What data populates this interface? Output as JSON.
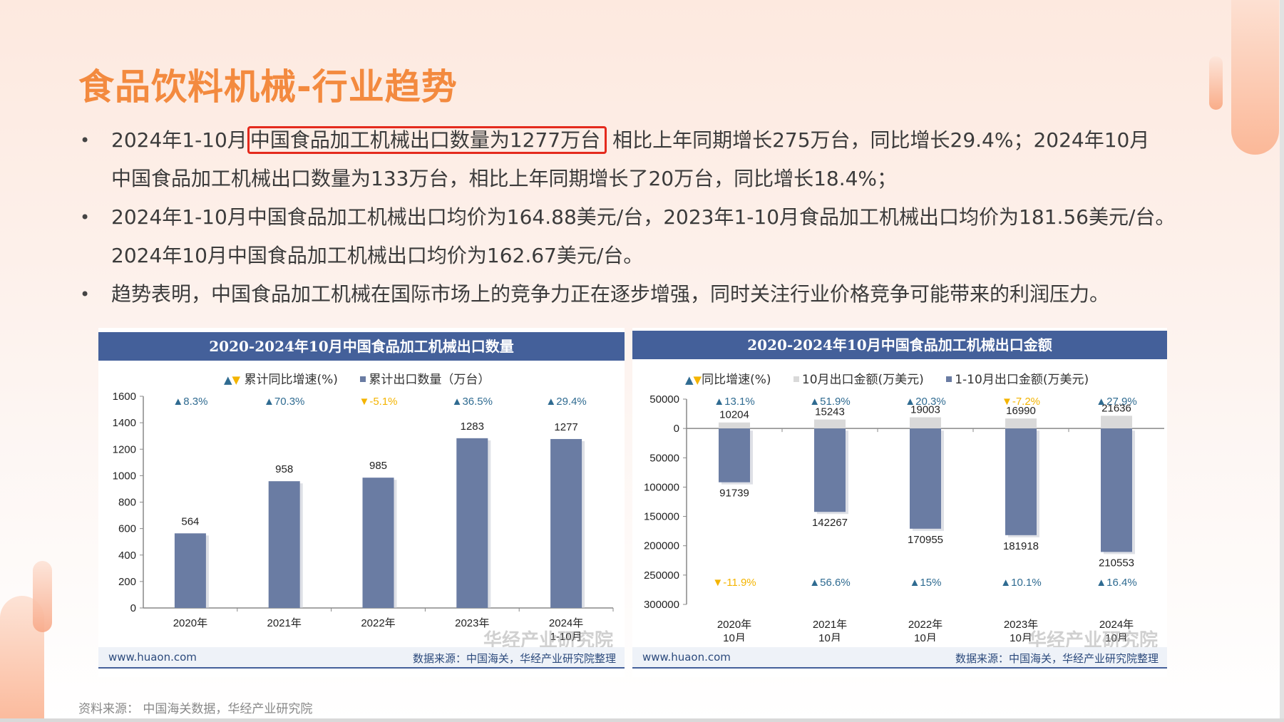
{
  "page": {
    "title": "食品饮料机械-行业趋势",
    "source_note": "资料来源：  中国海关数据，华经产业研究院"
  },
  "bullets": [
    {
      "lines": [
        {
          "pre": "2024年1-10月",
          "highlight": "中国食品加工机械出口数量为1277万台",
          "post": "相比上年同期增长275万台，同比增长29.4%；2024年10月"
        },
        {
          "text": "中国食品加工机械出口数量为133万台，相比上年同期增长了20万台，同比增长18.4%；"
        }
      ]
    },
    {
      "lines": [
        {
          "text": "2024年1-10月中国食品加工机械出口均价为164.88美元/台，2023年1-10月食品加工机械出口均价为181.56美元/台。"
        },
        {
          "text": "2024年10月中国食品加工机械出口均价为162.67美元/台。"
        }
      ]
    },
    {
      "lines": [
        {
          "text": "趋势表明，中国食品加工机械在国际市场上的竞争力正在逐步增强，同时关注行业价格竞争可能带来的利润压力。"
        }
      ]
    }
  ],
  "chart_data": [
    {
      "type": "bar",
      "title": "2020-2024年10月中国食品加工机械出口数量",
      "legend": [
        "累计同比增速(%)",
        "累计出口数量（万台）"
      ],
      "categories": [
        "2020年",
        "2021年",
        "2022年",
        "2023年",
        "2024年1-10月"
      ],
      "series": [
        {
          "name": "累计出口数量（万台）",
          "values": [
            564,
            958,
            985,
            1283,
            1277
          ]
        },
        {
          "name": "累计同比增速(%)",
          "values": [
            8.3,
            70.3,
            -5.1,
            36.5,
            29.4
          ],
          "labels": [
            "▲8.3%",
            "▲70.3%",
            "▼-5.1%",
            "▲36.5%",
            "▲29.4%"
          ]
        }
      ],
      "yticks": [
        0,
        200,
        400,
        600,
        800,
        1000,
        1200,
        1400,
        1600
      ],
      "ylim": [
        0,
        1600
      ],
      "xlabel": "",
      "ylabel": "",
      "grid": false,
      "legend_position": "top",
      "footer_left": "www.huaon.com",
      "footer_right": "数据来源：中国海关，华经产业研究院整理",
      "watermark": "华经产业研究院"
    },
    {
      "type": "bar",
      "title": "2020-2024年10月中国食品加工机械出口金额",
      "legend": [
        "同比增速(%)",
        "10月出口金额(万美元)",
        "1-10月出口金额(万美元)"
      ],
      "categories": [
        "2020年10月",
        "2021年10月",
        "2022年10月",
        "2023年10月",
        "2024年10月"
      ],
      "series": [
        {
          "name": "10月出口金额(万美元)",
          "values": [
            10204,
            15243,
            19003,
            16990,
            21636
          ],
          "growth_labels": [
            "▲13.1%",
            "▲51.9%",
            "▲20.3%",
            "▼-7.2%",
            "▲27.9%"
          ],
          "growth": [
            13.1,
            51.9,
            20.3,
            -7.2,
            27.9
          ]
        },
        {
          "name": "1-10月出口金额(万美元)",
          "values": [
            91739,
            142267,
            170955,
            181918,
            210553
          ],
          "growth_labels": [
            "▼-11.9%",
            "▲56.6%",
            "▲15%",
            "▲10.1%",
            "▲16.4%"
          ],
          "growth": [
            -11.9,
            56.6,
            15,
            10.1,
            16.4
          ]
        }
      ],
      "yticks": [
        "50000",
        "0",
        "50000",
        "100000",
        "150000",
        "200000",
        "250000",
        "300000"
      ],
      "ylim": [
        -300000,
        50000
      ],
      "xlabel": "",
      "ylabel": "",
      "grid": false,
      "legend_position": "top",
      "footer_left": "www.huaon.com",
      "footer_right": "数据来源：中国海关，华经产业研究院整理",
      "watermark": "华经产业研究院"
    }
  ],
  "colors": {
    "title": "#f38a3f",
    "bar": "#6a7ca3",
    "bar_light": "#d9d9d9",
    "header": "#44609a",
    "up": "#2f6b91",
    "down": "#f4b400",
    "highlight_box": "#e42a1d"
  }
}
